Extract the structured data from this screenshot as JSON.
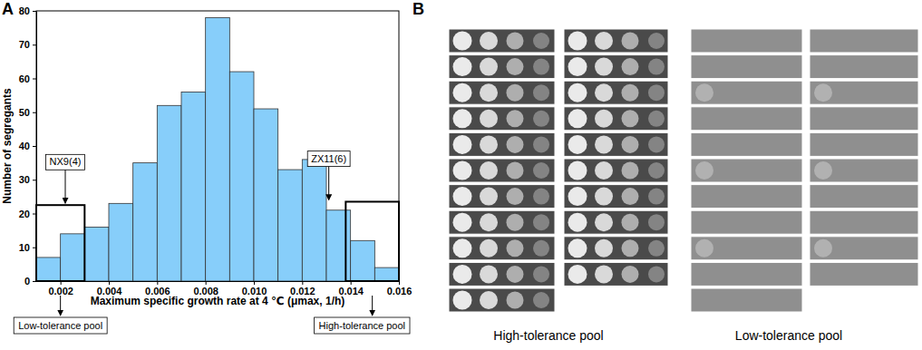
{
  "chart_data": {
    "type": "histogram",
    "xlabel": "Maximum specific growth rate at 4 ℃ (μmax, 1/h)",
    "ylabel": "Number of segregants",
    "bins": [
      0.001,
      0.002,
      0.003,
      0.004,
      0.005,
      0.006,
      0.007,
      0.008,
      0.009,
      0.01,
      0.011,
      0.012,
      0.013,
      0.014,
      0.015,
      0.016
    ],
    "values": [
      7,
      14,
      16,
      23,
      35,
      52,
      56,
      78,
      62,
      51,
      33,
      36,
      21,
      12,
      4
    ],
    "color": "#87cefa",
    "xlim": [
      0.001,
      0.016
    ],
    "ylim": [
      0,
      80
    ],
    "xticks": [
      0.002,
      0.004,
      0.006,
      0.008,
      {
        "value": 0.01,
        "label": "0.010"
      },
      0.012,
      0.014,
      0.016
    ],
    "yticks": [
      0,
      10,
      20,
      30,
      40,
      50,
      60,
      70,
      80
    ],
    "annotations": [
      {
        "text": "NX9(4)",
        "x": 0.0022,
        "y": 23
      },
      {
        "text": "ZX11(6)",
        "x": 0.0131,
        "y": 24
      }
    ],
    "pools": [
      {
        "label": "Low-tolerance pool",
        "x": [
          0.001,
          0.003
        ],
        "y": 22.5
      },
      {
        "label": "High-tolerance pool",
        "x": [
          0.0138,
          0.016
        ],
        "y": 23.5
      }
    ]
  },
  "panel_labels": [
    "A",
    "B"
  ],
  "spot_assay": {
    "labels": [
      "High-tolerance pool",
      "Low-tolerance pool"
    ]
  }
}
